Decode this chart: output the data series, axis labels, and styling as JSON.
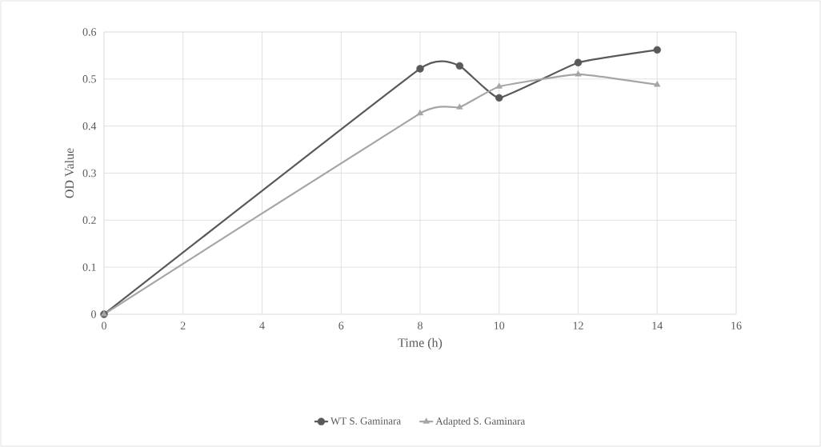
{
  "chart_data": {
    "type": "line",
    "xlabel": "Time (h)",
    "ylabel": "OD Value",
    "x": [
      0,
      8,
      9,
      10,
      12,
      14
    ],
    "series": [
      {
        "name": "WT S. Gaminara",
        "color": "#595959",
        "marker": "circle",
        "values": [
          0,
          0.522,
          0.528,
          0.46,
          0.535,
          0.562
        ]
      },
      {
        "name": "Adapted S. Gaminara",
        "color": "#a5a5a5",
        "marker": "triangle",
        "values": [
          0,
          0.427,
          0.44,
          0.484,
          0.51,
          0.488
        ]
      }
    ],
    "xlim": [
      0,
      16
    ],
    "xticks": [
      0,
      2,
      4,
      6,
      8,
      10,
      12,
      14,
      16
    ],
    "ylim": [
      0,
      0.6
    ],
    "yticks": [
      0,
      0.1,
      0.2,
      0.3,
      0.4,
      0.5,
      0.6
    ],
    "grid": true,
    "legend": "bottom"
  }
}
